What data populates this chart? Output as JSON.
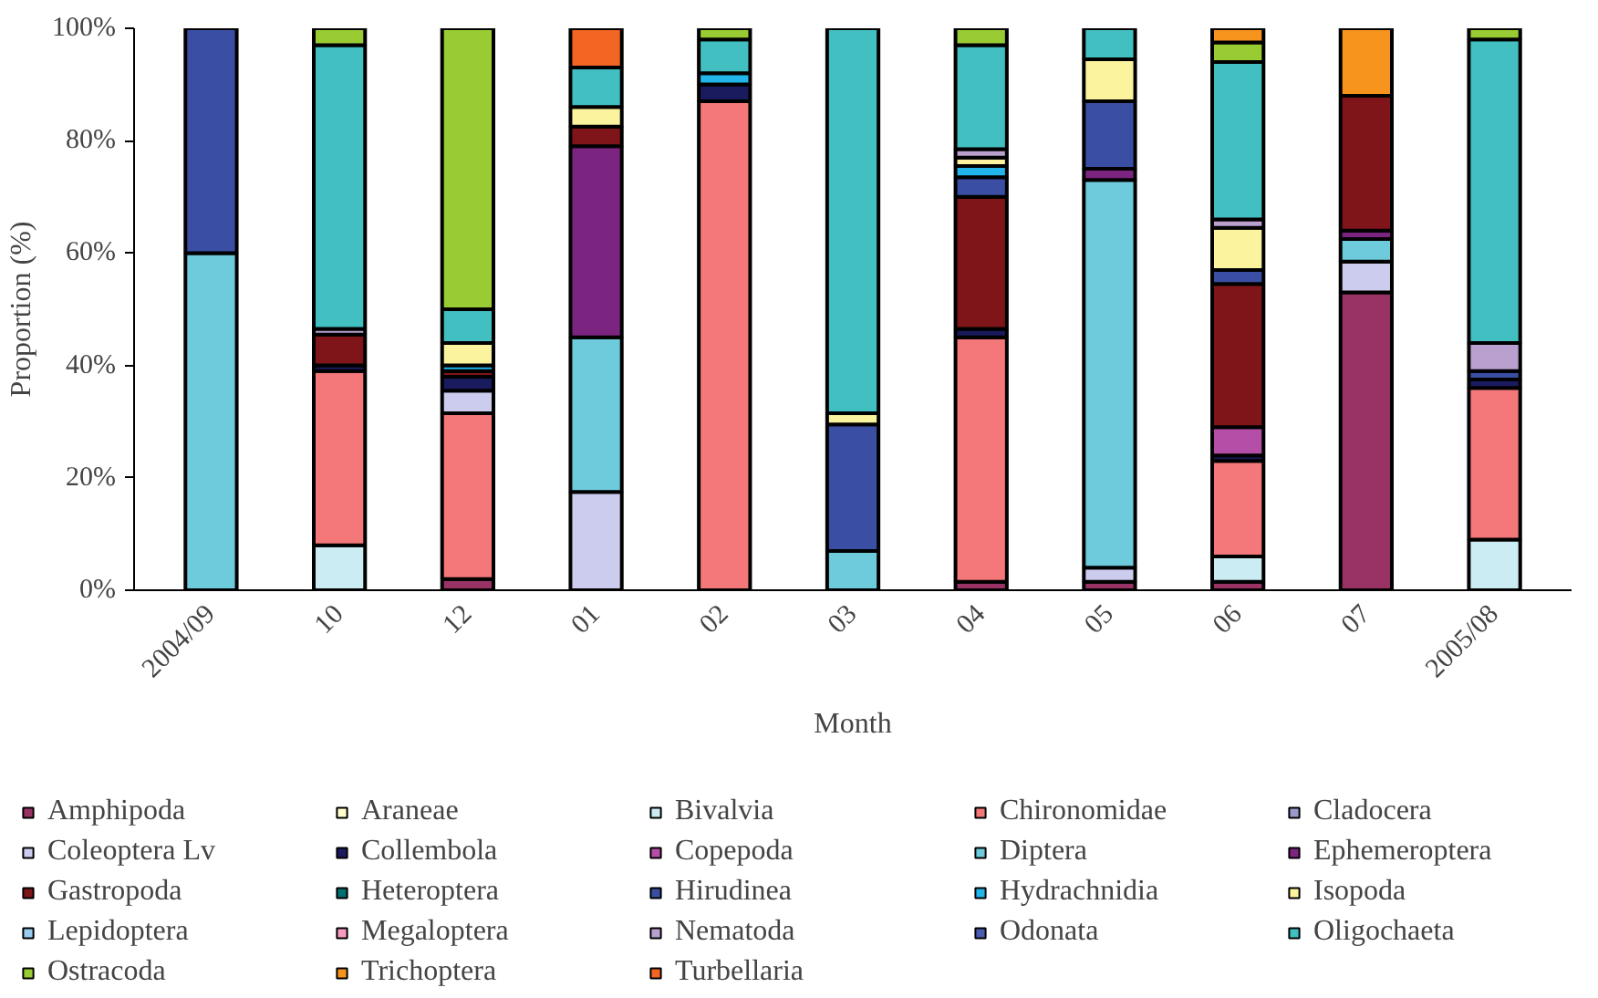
{
  "chart_data": {
    "type": "bar",
    "stacked": true,
    "xlabel": "Month",
    "ylabel": "Proportion (%)",
    "categories": [
      "2004/09",
      "10",
      "12",
      "01",
      "02",
      "03",
      "04",
      "05",
      "06",
      "07",
      "2005/08"
    ],
    "ylim": [
      0,
      100
    ],
    "yticks": [
      {
        "value": 0,
        "label": "0%"
      },
      {
        "value": 20,
        "label": "20%"
      },
      {
        "value": 40,
        "label": "40%"
      },
      {
        "value": 60,
        "label": "60%"
      },
      {
        "value": 80,
        "label": "80%"
      },
      {
        "value": 100,
        "label": "100%"
      }
    ],
    "grid": false,
    "legend": "bottom",
    "series": [
      {
        "name": "Amphipoda",
        "color": "#993366",
        "values": [
          null,
          null,
          2,
          null,
          null,
          null,
          1.5,
          1.5,
          1.5,
          53,
          null
        ]
      },
      {
        "name": "Araneae",
        "color": "#ffffcc",
        "values": [
          null,
          null,
          null,
          null,
          null,
          null,
          null,
          null,
          null,
          null,
          null
        ]
      },
      {
        "name": "Bivalvia",
        "color": "#ccecf4",
        "values": [
          null,
          8,
          null,
          null,
          null,
          null,
          null,
          null,
          4.5,
          null,
          9
        ]
      },
      {
        "name": "Chironomidae",
        "color": "#f4787a",
        "values": [
          null,
          31,
          29.5,
          null,
          87,
          null,
          43.5,
          null,
          17,
          null,
          27
        ]
      },
      {
        "name": "Cladocera",
        "color": "#9999cc",
        "values": [
          null,
          null,
          null,
          null,
          null,
          null,
          null,
          null,
          null,
          null,
          null
        ]
      },
      {
        "name": "Coleoptera Lv",
        "color": "#ccccee",
        "values": [
          null,
          null,
          4,
          17.5,
          null,
          null,
          null,
          2.5,
          null,
          5.5,
          null
        ]
      },
      {
        "name": "Collembola",
        "color": "#1a1a5e",
        "values": [
          null,
          1,
          2.5,
          null,
          3,
          null,
          1.5,
          null,
          1,
          null,
          1.5
        ]
      },
      {
        "name": "Copepoda",
        "color": "#b44ea6",
        "values": [
          null,
          null,
          null,
          null,
          null,
          null,
          null,
          null,
          5,
          null,
          null
        ]
      },
      {
        "name": "Diptera",
        "color": "#6dcbdb",
        "values": [
          60,
          null,
          null,
          27.5,
          null,
          7,
          null,
          69,
          null,
          4,
          null
        ]
      },
      {
        "name": "Ephemeroptera",
        "color": "#7b2480",
        "values": [
          null,
          null,
          null,
          34,
          null,
          null,
          null,
          2,
          null,
          1.5,
          null
        ]
      },
      {
        "name": "Gastropoda",
        "color": "#7f1518",
        "values": [
          null,
          5.5,
          1,
          3.5,
          null,
          null,
          23.5,
          null,
          25.5,
          24,
          null
        ]
      },
      {
        "name": "Heteroptera",
        "color": "#007070",
        "values": [
          null,
          null,
          null,
          null,
          null,
          null,
          null,
          null,
          null,
          null,
          null
        ]
      },
      {
        "name": "Hirudinea",
        "color": "#3a4ea3",
        "values": [
          40,
          null,
          null,
          null,
          null,
          22.5,
          3.5,
          12,
          2.5,
          null,
          1.5
        ]
      },
      {
        "name": "Hydrachnidia",
        "color": "#22b5ea",
        "values": [
          null,
          null,
          1,
          null,
          2,
          null,
          2,
          null,
          null,
          null,
          null
        ]
      },
      {
        "name": "Isopoda",
        "color": "#fbf39e",
        "values": [
          null,
          null,
          4,
          3.5,
          null,
          2,
          1.5,
          7.5,
          7.5,
          null,
          null
        ]
      },
      {
        "name": "Lepidoptera",
        "color": "#99ccee",
        "values": [
          null,
          null,
          null,
          null,
          null,
          null,
          null,
          null,
          null,
          null,
          null
        ]
      },
      {
        "name": "Megaloptera",
        "color": "#f79bc1",
        "values": [
          null,
          null,
          null,
          null,
          null,
          null,
          null,
          null,
          null,
          null,
          null
        ]
      },
      {
        "name": "Nematoda",
        "color": "#b9a0cf",
        "values": [
          null,
          1,
          null,
          null,
          null,
          null,
          1.5,
          null,
          1.5,
          null,
          5
        ]
      },
      {
        "name": "Odonata",
        "color": "#4a5db0",
        "values": [
          null,
          null,
          null,
          null,
          null,
          null,
          null,
          null,
          null,
          null,
          null
        ]
      },
      {
        "name": "Oligochaeta",
        "color": "#42bfc1",
        "values": [
          null,
          50.5,
          6,
          7,
          6,
          68.5,
          18.5,
          5.5,
          28,
          null,
          54
        ]
      },
      {
        "name": "Ostracoda",
        "color": "#99cc33",
        "values": [
          null,
          3,
          50,
          null,
          2,
          null,
          3,
          null,
          3.5,
          null,
          2
        ]
      },
      {
        "name": "Trichoptera",
        "color": "#f7941d",
        "values": [
          null,
          null,
          null,
          null,
          null,
          null,
          null,
          null,
          2.5,
          12,
          null
        ]
      },
      {
        "name": "Turbellaria",
        "color": "#f26522",
        "values": [
          null,
          null,
          null,
          7,
          null,
          null,
          null,
          null,
          null,
          null,
          null
        ]
      }
    ]
  }
}
